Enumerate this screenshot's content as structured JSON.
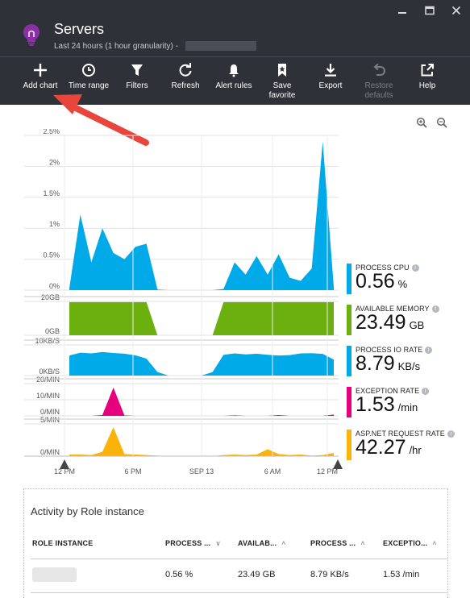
{
  "window": {
    "controls": [
      "minimize-icon",
      "maximize-icon",
      "close-icon"
    ]
  },
  "header": {
    "title": "Servers",
    "subtitle": "Last 24 hours (1 hour granularity) -"
  },
  "toolbar": {
    "items": [
      {
        "label": "Add chart",
        "icon": "plus-icon"
      },
      {
        "label": "Time range",
        "icon": "clock-icon"
      },
      {
        "label": "Filters",
        "icon": "filter-icon"
      },
      {
        "label": "Refresh",
        "icon": "refresh-icon"
      },
      {
        "label": "Alert rules",
        "icon": "bell-icon"
      },
      {
        "label": "Save favorite",
        "icon": "bookmark-icon"
      },
      {
        "label": "Export",
        "icon": "download-icon"
      },
      {
        "label": "Restore defaults",
        "icon": "undo-icon",
        "disabled": true
      },
      {
        "label": "Help",
        "icon": "external-link-icon"
      }
    ]
  },
  "colors": {
    "header_bg": "#2e3238",
    "cpu": "#00aae8",
    "memory": "#6cb010",
    "io": "#00aae8",
    "exception": "#e6007e",
    "request": "#fbb30b",
    "arrow": "#e8453c"
  },
  "chart_data": [
    {
      "type": "area",
      "x": [
        0,
        1,
        2,
        3,
        4,
        5,
        6,
        7,
        8,
        9,
        10,
        11,
        12,
        13,
        14,
        15,
        16,
        17,
        18,
        19,
        20,
        21,
        22,
        23,
        24
      ],
      "y_ticks": [
        "2.5%",
        "2%",
        "1.5%",
        "1%",
        "0.5%",
        "0%"
      ],
      "ylim": [
        0,
        2.5
      ],
      "values": [
        0.03,
        1.22,
        0.45,
        1.0,
        0.6,
        0.5,
        0.7,
        0.75,
        0.01,
        0,
        0,
        0,
        0,
        0,
        0.02,
        0.45,
        0.25,
        0.55,
        0.25,
        0.58,
        0.2,
        0.15,
        0.35,
        2.4,
        0.05
      ],
      "series_label": "PROCESS CPU",
      "value": "0.56",
      "unit": "%"
    },
    {
      "type": "area",
      "y_ticks": [
        "20GB",
        "0GB"
      ],
      "ylim": [
        0,
        24
      ],
      "values": [
        23.5,
        23.5,
        23.5,
        23.5,
        23.5,
        23.5,
        23.5,
        23.5,
        0,
        0,
        0,
        0,
        0,
        0,
        23.5,
        23.5,
        23.5,
        23.5,
        23.5,
        23.5,
        23.5,
        23.5,
        23.5,
        23.5,
        23.5
      ],
      "series_label": "AVAILABLE MEMORY",
      "value": "23.49",
      "unit": "GB"
    },
    {
      "type": "area",
      "y_ticks": [
        "10KB/S",
        "0KB/S"
      ],
      "ylim": [
        0,
        13
      ],
      "values": [
        8.5,
        9.7,
        9.4,
        10,
        9.6,
        9.3,
        8.6,
        7.2,
        1.5,
        0,
        0,
        0,
        0,
        1.5,
        8.8,
        9.4,
        9.0,
        9.3,
        8.8,
        8.5,
        8.7,
        9.4,
        9.5,
        9.2,
        6.8
      ],
      "series_label": "PROCESS IO RATE",
      "value": "8.79",
      "unit": "KB/s"
    },
    {
      "type": "area",
      "y_ticks": [
        "20/MIN",
        "10/MIN",
        "0/MIN"
      ],
      "ylim": [
        0,
        20
      ],
      "values": [
        0,
        0,
        0,
        0.5,
        17.5,
        0.3,
        0,
        0,
        0,
        0,
        0,
        0,
        0,
        0,
        0,
        0.3,
        0,
        0,
        0,
        0.5,
        0,
        0,
        0,
        0,
        0.8
      ],
      "series_label": "EXCEPTION RATE",
      "value": "1.53",
      "unit": "/min"
    },
    {
      "type": "area",
      "y_ticks": [
        "5/MIN",
        "0/MIN"
      ],
      "ylim": [
        0,
        6
      ],
      "values": [
        0.3,
        0.3,
        0.2,
        0.8,
        5.4,
        0.4,
        0.3,
        0.2,
        0.1,
        0,
        0,
        0,
        0,
        0,
        0.2,
        0.3,
        0.2,
        0.3,
        1.3,
        0.4,
        0.2,
        0.3,
        0.1,
        0.2,
        0.6
      ],
      "series_label": "ASP.NET REQUEST RATE",
      "value": "42.27",
      "unit": "/hr"
    }
  ],
  "x_axis": {
    "labels": [
      "12 PM",
      "6 PM",
      "SEP 13",
      "6 AM",
      "12 PM"
    ]
  },
  "table": {
    "title": "Activity by Role instance",
    "columns": [
      "ROLE INSTANCE",
      "PROCESS ...",
      "AVAILAB...",
      "PROCESS ...",
      "EXCEPTIO..."
    ],
    "rows": [
      {
        "cells": [
          "",
          "0.56 %",
          "23.49 GB",
          "8.79 KB/s",
          "1.53 /min"
        ]
      }
    ]
  }
}
